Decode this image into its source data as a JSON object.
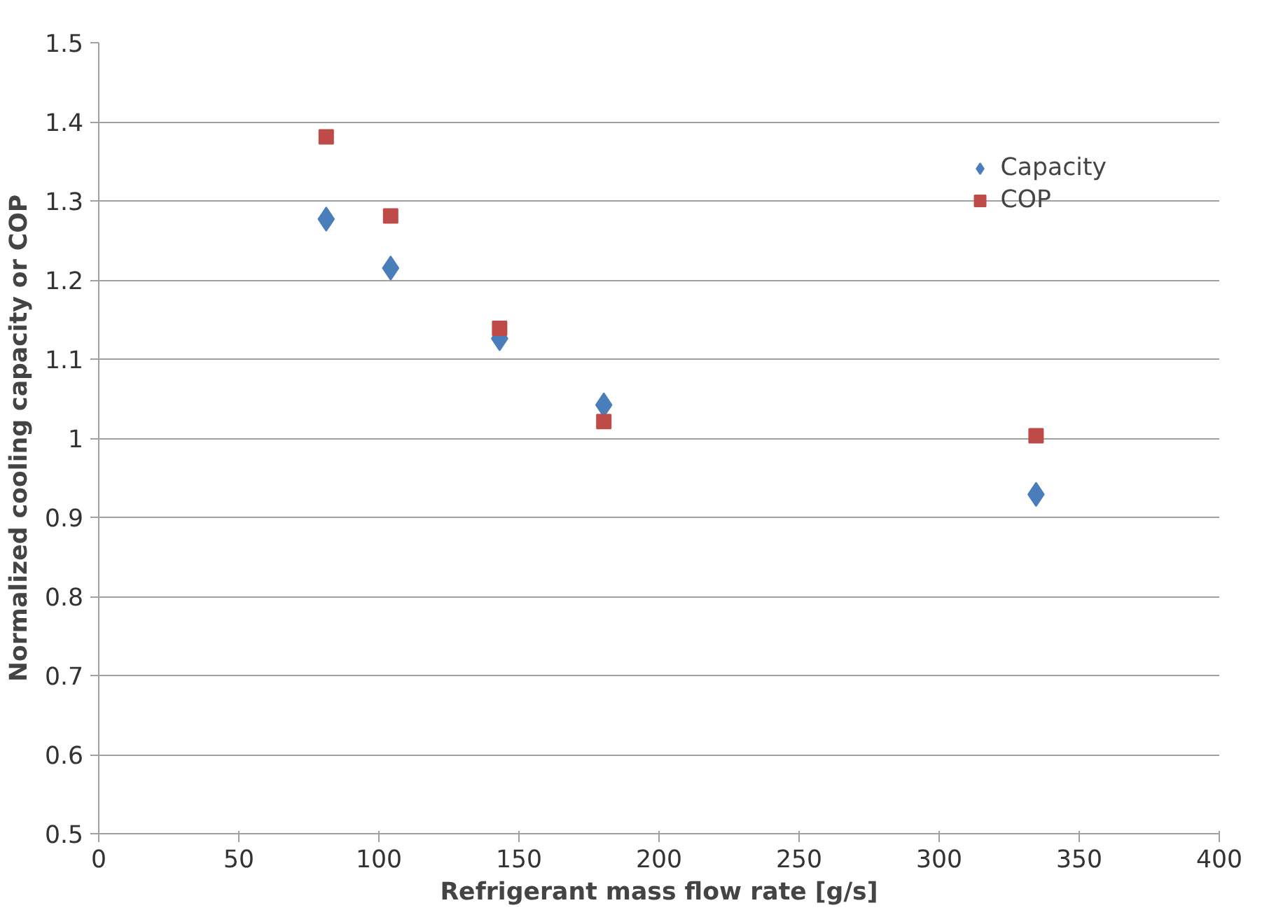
{
  "chart_data": {
    "type": "scatter",
    "xlabel": "Refrigerant mass flow rate [g/s]",
    "ylabel": "Normalized cooling capacity or COP",
    "xlim": [
      0,
      400
    ],
    "xticks": [
      0,
      50,
      100,
      150,
      200,
      250,
      300,
      350,
      400
    ],
    "ylim": [
      0.5,
      1.5
    ],
    "yticks": [
      0.5,
      0.6,
      0.7,
      0.8,
      0.9,
      1,
      1.1,
      1.2,
      1.3,
      1.4,
      1.5
    ],
    "grid": "y",
    "legend": "top right",
    "series": [
      {
        "name": "Capacity",
        "color": "#4a7ebb",
        "marker": "diamond",
        "x": [
          81.2,
          104.2,
          143.1,
          180.3,
          334.6
        ],
        "values": [
          1.277,
          1.215,
          1.126,
          1.042,
          0.929
        ]
      },
      {
        "name": "COP",
        "color": "#be4b48",
        "marker": "square",
        "x": [
          81.2,
          104.2,
          143.1,
          180.3,
          334.6
        ],
        "values": [
          1.381,
          1.281,
          1.139,
          1.021,
          1.003
        ]
      }
    ]
  }
}
